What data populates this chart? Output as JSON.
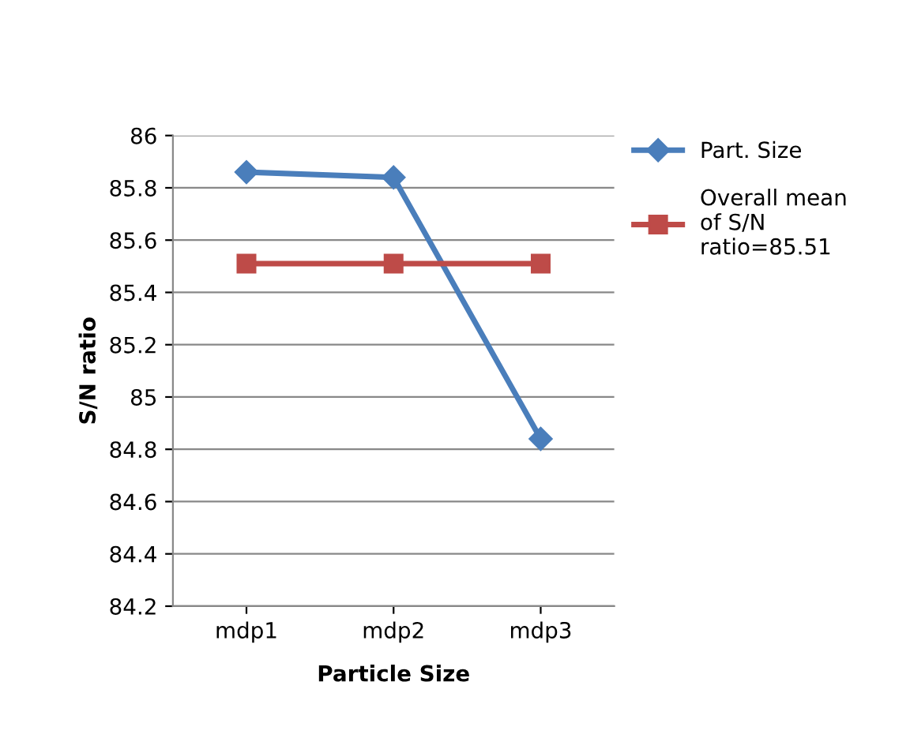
{
  "chart_data": {
    "type": "line",
    "xlabel": "Particle Size",
    "ylabel": "S/N ratio",
    "categories": [
      "mdp1",
      "mdp2",
      "mdp3"
    ],
    "series": [
      {
        "name": "Part. Size",
        "color": "#4a7ebb",
        "marker": "diamond",
        "values": [
          85.86,
          85.84,
          84.84
        ]
      },
      {
        "name": "Overall mean of S/N ratio=85.51",
        "color": "#be4b48",
        "marker": "square",
        "values": [
          85.51,
          85.51,
          85.51
        ]
      }
    ],
    "ylim": [
      84.2,
      86
    ],
    "yticks": [
      84.2,
      84.4,
      84.6,
      84.8,
      85,
      85.2,
      85.4,
      85.6,
      85.8,
      86
    ],
    "grid": "y",
    "legend": "right",
    "line_style": "solid"
  }
}
